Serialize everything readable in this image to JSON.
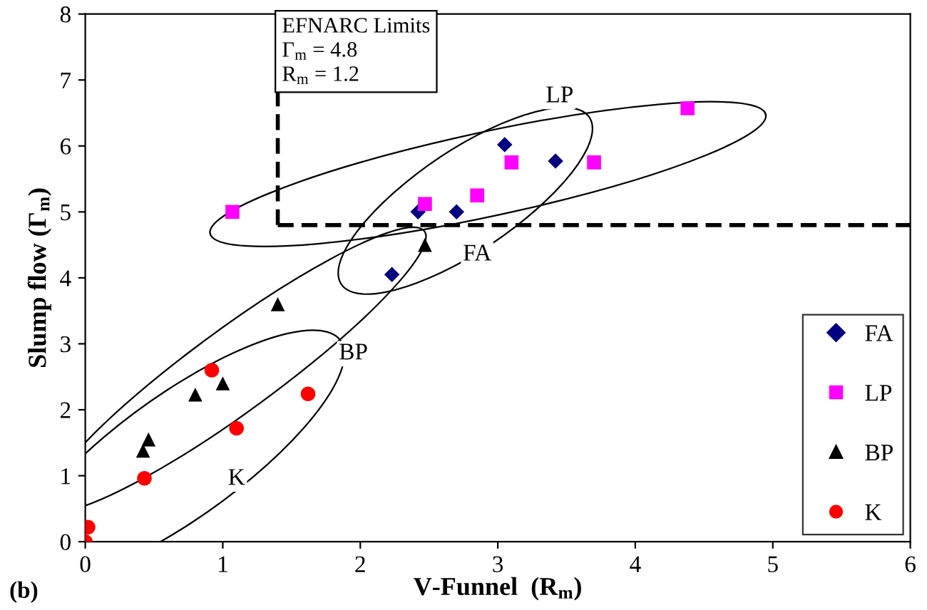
{
  "chart_data": {
    "type": "scatter",
    "xlabel": "V-Funnel  (R$_{m}$)",
    "ylabel": "Slump flow (Γ$_{m}$)",
    "xlim": [
      0,
      6
    ],
    "ylim": [
      0,
      8
    ],
    "xticks": [
      0,
      1,
      2,
      3,
      4,
      5,
      6
    ],
    "yticks": [
      0,
      1,
      2,
      3,
      4,
      5,
      6,
      7,
      8
    ],
    "grid": false,
    "legend": "bottom right",
    "series": [
      {
        "name": "FA",
        "color": "#000080",
        "marker": "diamond",
        "x": [
          2.23,
          2.42,
          2.7,
          3.05,
          3.42
        ],
        "values": [
          4.05,
          5.0,
          5.0,
          6.02,
          5.77
        ]
      },
      {
        "name": "LP",
        "color": "#ff00ff",
        "marker": "square",
        "x": [
          1.07,
          2.47,
          2.85,
          3.1,
          3.7,
          4.38
        ],
        "values": [
          5.0,
          5.12,
          5.25,
          5.75,
          5.75,
          6.57
        ]
      },
      {
        "name": "BP",
        "color": "#000000",
        "marker": "triangle",
        "x": [
          0.42,
          0.46,
          0.8,
          1.0,
          1.4,
          2.47
        ],
        "values": [
          1.38,
          1.55,
          2.23,
          2.4,
          3.6,
          4.5
        ]
      },
      {
        "name": "K",
        "color": "#ff0000",
        "marker": "circle",
        "x": [
          0.0,
          0.02,
          0.43,
          0.92,
          1.1,
          1.62
        ],
        "values": [
          0.0,
          0.22,
          0.96,
          2.6,
          1.72,
          2.24
        ]
      }
    ],
    "ref_lines": [
      {
        "axis": "y",
        "value": 4.8,
        "color": "#000000",
        "line_style": "dashed"
      },
      {
        "axis": "x",
        "value": 1.4,
        "color": "#000000",
        "line_style": "dashed"
      }
    ],
    "annotations": [
      "EFNARC Limits\nΓ$_{m}$ = 4.8\nR$_{m}$ = 1.2",
      "(b)",
      {
        "text": "LP",
        "x": 3.45,
        "y": 6.75
      },
      {
        "text": "FA",
        "x": 2.85,
        "y": 4.35
      },
      {
        "text": "BP",
        "x": 1.95,
        "y": 2.85
      },
      {
        "text": "K",
        "x": 1.1,
        "y": 0.95
      }
    ]
  }
}
